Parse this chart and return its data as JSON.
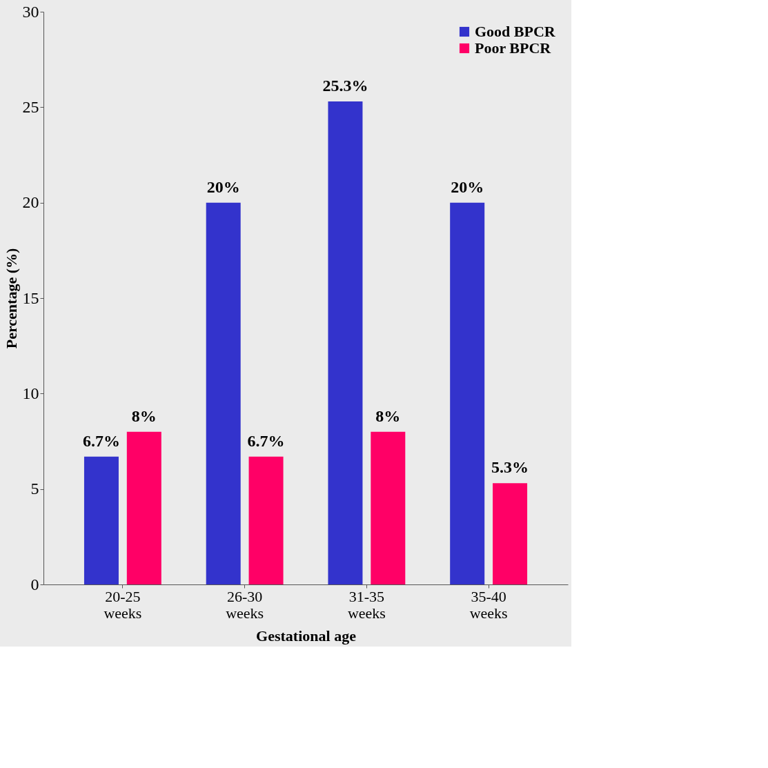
{
  "chart_data": {
    "type": "bar",
    "xlabel": "Gestational age",
    "ylabel": "Percentage (%)",
    "categories": [
      "20-25 weeks",
      "26-30 weeks",
      "31-35 weeks",
      "35-40 weeks"
    ],
    "series": [
      {
        "name": "Good BPCR",
        "color": "#3333cc",
        "values": [
          6.7,
          20,
          25.3,
          20
        ],
        "value_labels": [
          "6.7%",
          "20%",
          "25.3%",
          "20%"
        ]
      },
      {
        "name": "Poor BPCR",
        "color": "#ff0066",
        "values": [
          8,
          6.7,
          8,
          5.3
        ],
        "value_labels": [
          "8%",
          "6.7%",
          "8%",
          "5.3%"
        ]
      }
    ],
    "ylim": [
      0,
      30
    ],
    "yticks": [
      0,
      5,
      10,
      15,
      20,
      25,
      30
    ],
    "grid": false,
    "legend": "top right"
  }
}
